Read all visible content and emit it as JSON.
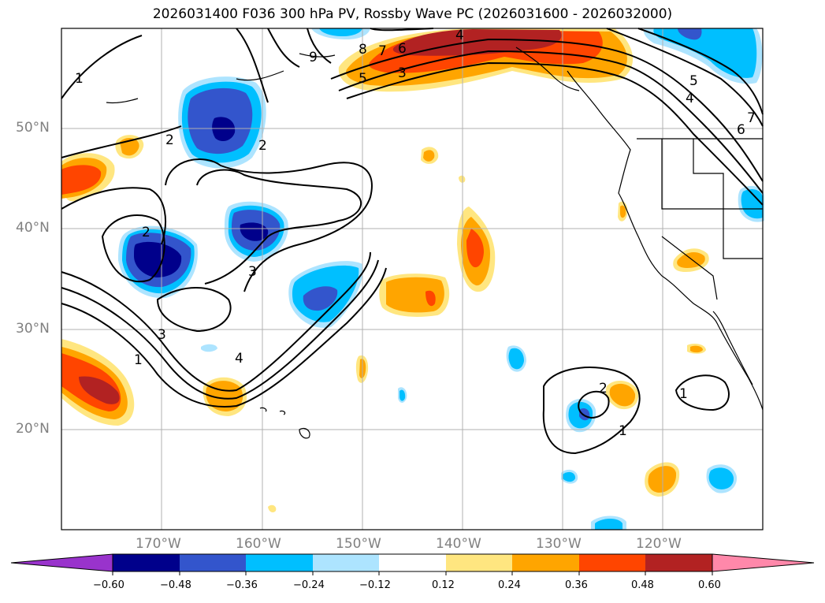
{
  "title": "2026031400 F036 300 hPa PV, Rossby Wave PC (2026031600 - 2026032000)",
  "map": {
    "lat_labels": [
      "50°N",
      "40°N",
      "30°N",
      "20°N"
    ],
    "lon_labels": [
      "170°W",
      "160°W",
      "150°W",
      "140°W",
      "130°W",
      "120°W"
    ],
    "lat_range": [
      10,
      60
    ],
    "lon_range": [
      -180,
      -110
    ],
    "contour_labels": [
      "1",
      "2",
      "3",
      "4",
      "5",
      "6",
      "7",
      "8",
      "9",
      "1",
      "2",
      "3",
      "3",
      "4",
      "4",
      "5",
      "6",
      "7",
      "1",
      "2",
      "1",
      "2"
    ]
  },
  "colorbar": {
    "ticks": [
      "−0.60",
      "−0.48",
      "−0.36",
      "−0.24",
      "−0.12",
      "0.12",
      "0.24",
      "0.36",
      "0.48",
      "0.60"
    ],
    "colors": [
      "#9933cc",
      "#00008b",
      "#3355cc",
      "#00bfff",
      "#ade4ff",
      "#ffffff",
      "#ffe680",
      "#ffa500",
      "#ff4500",
      "#b22222",
      "#ff88aa"
    ]
  }
}
